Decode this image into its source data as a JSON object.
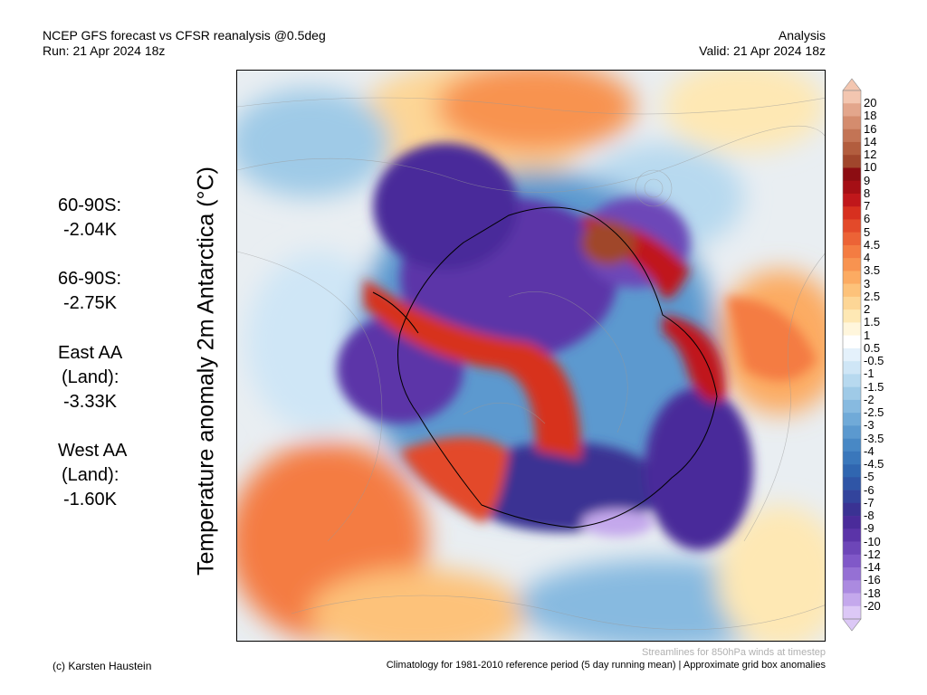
{
  "header": {
    "title_line1": "NCEP GFS forecast vs CFSR reanalysis @0.5deg",
    "title_line2": "Run: 21 Apr 2024 18z",
    "right_line1": "Analysis",
    "right_line2": "Valid: 21 Apr 2024 18z"
  },
  "ylabel": "Temperature anomaly 2m Antarctica (°C)",
  "stats": [
    {
      "label": "60-90S:",
      "value": "-2.04K"
    },
    {
      "label": "66-90S:",
      "value": "-2.75K"
    },
    {
      "label": "East AA",
      "label2": "(Land):",
      "value": "-3.33K"
    },
    {
      "label": "West AA",
      "label2": "(Land):",
      "value": "-1.60K"
    }
  ],
  "colorbar": {
    "ticks": [
      "20",
      "18",
      "16",
      "14",
      "12",
      "10",
      "9",
      "8",
      "7",
      "6",
      "5",
      "4.5",
      "4",
      "3.5",
      "3",
      "2.5",
      "2",
      "1.5",
      "1",
      "0.5",
      "-0.5",
      "-1",
      "-1.5",
      "-2",
      "-2.5",
      "-3",
      "-3.5",
      "-4",
      "-4.5",
      "-5",
      "-6",
      "-7",
      "-8",
      "-9",
      "-10",
      "-12",
      "-14",
      "-16",
      "-18",
      "-20"
    ],
    "colors": [
      "#f3c6b0",
      "#e3a68c",
      "#d48c6e",
      "#c37455",
      "#b25d3e",
      "#a0462c",
      "#8c0d12",
      "#a50f15",
      "#c0171b",
      "#d7301f",
      "#e34a2a",
      "#ec6336",
      "#f47c42",
      "#f89350",
      "#fcab62",
      "#fdc27a",
      "#fdd696",
      "#fee8b4",
      "#fff6dc",
      "#ffffff",
      "#e4f1fb",
      "#cfe6f6",
      "#b7d9ef",
      "#9fcae7",
      "#87bae0",
      "#70aad8",
      "#5b99cf",
      "#4888c5",
      "#3a77bb",
      "#3066b0",
      "#2f55a6",
      "#33449c",
      "#3a3293",
      "#4a2b9a",
      "#5b34a8",
      "#6d46b8",
      "#8058c8",
      "#9570d4",
      "#ab8ae0",
      "#c4a8ec",
      "#dcc8f6"
    ]
  },
  "footer": {
    "credit": "(c) Karsten Haustein",
    "streamline_note": "Streamlines for 850hPa winds at timestep",
    "climatology": "Climatology for 1981-2010 reference period (5 day running mean) | Approximate grid box anomalies"
  }
}
